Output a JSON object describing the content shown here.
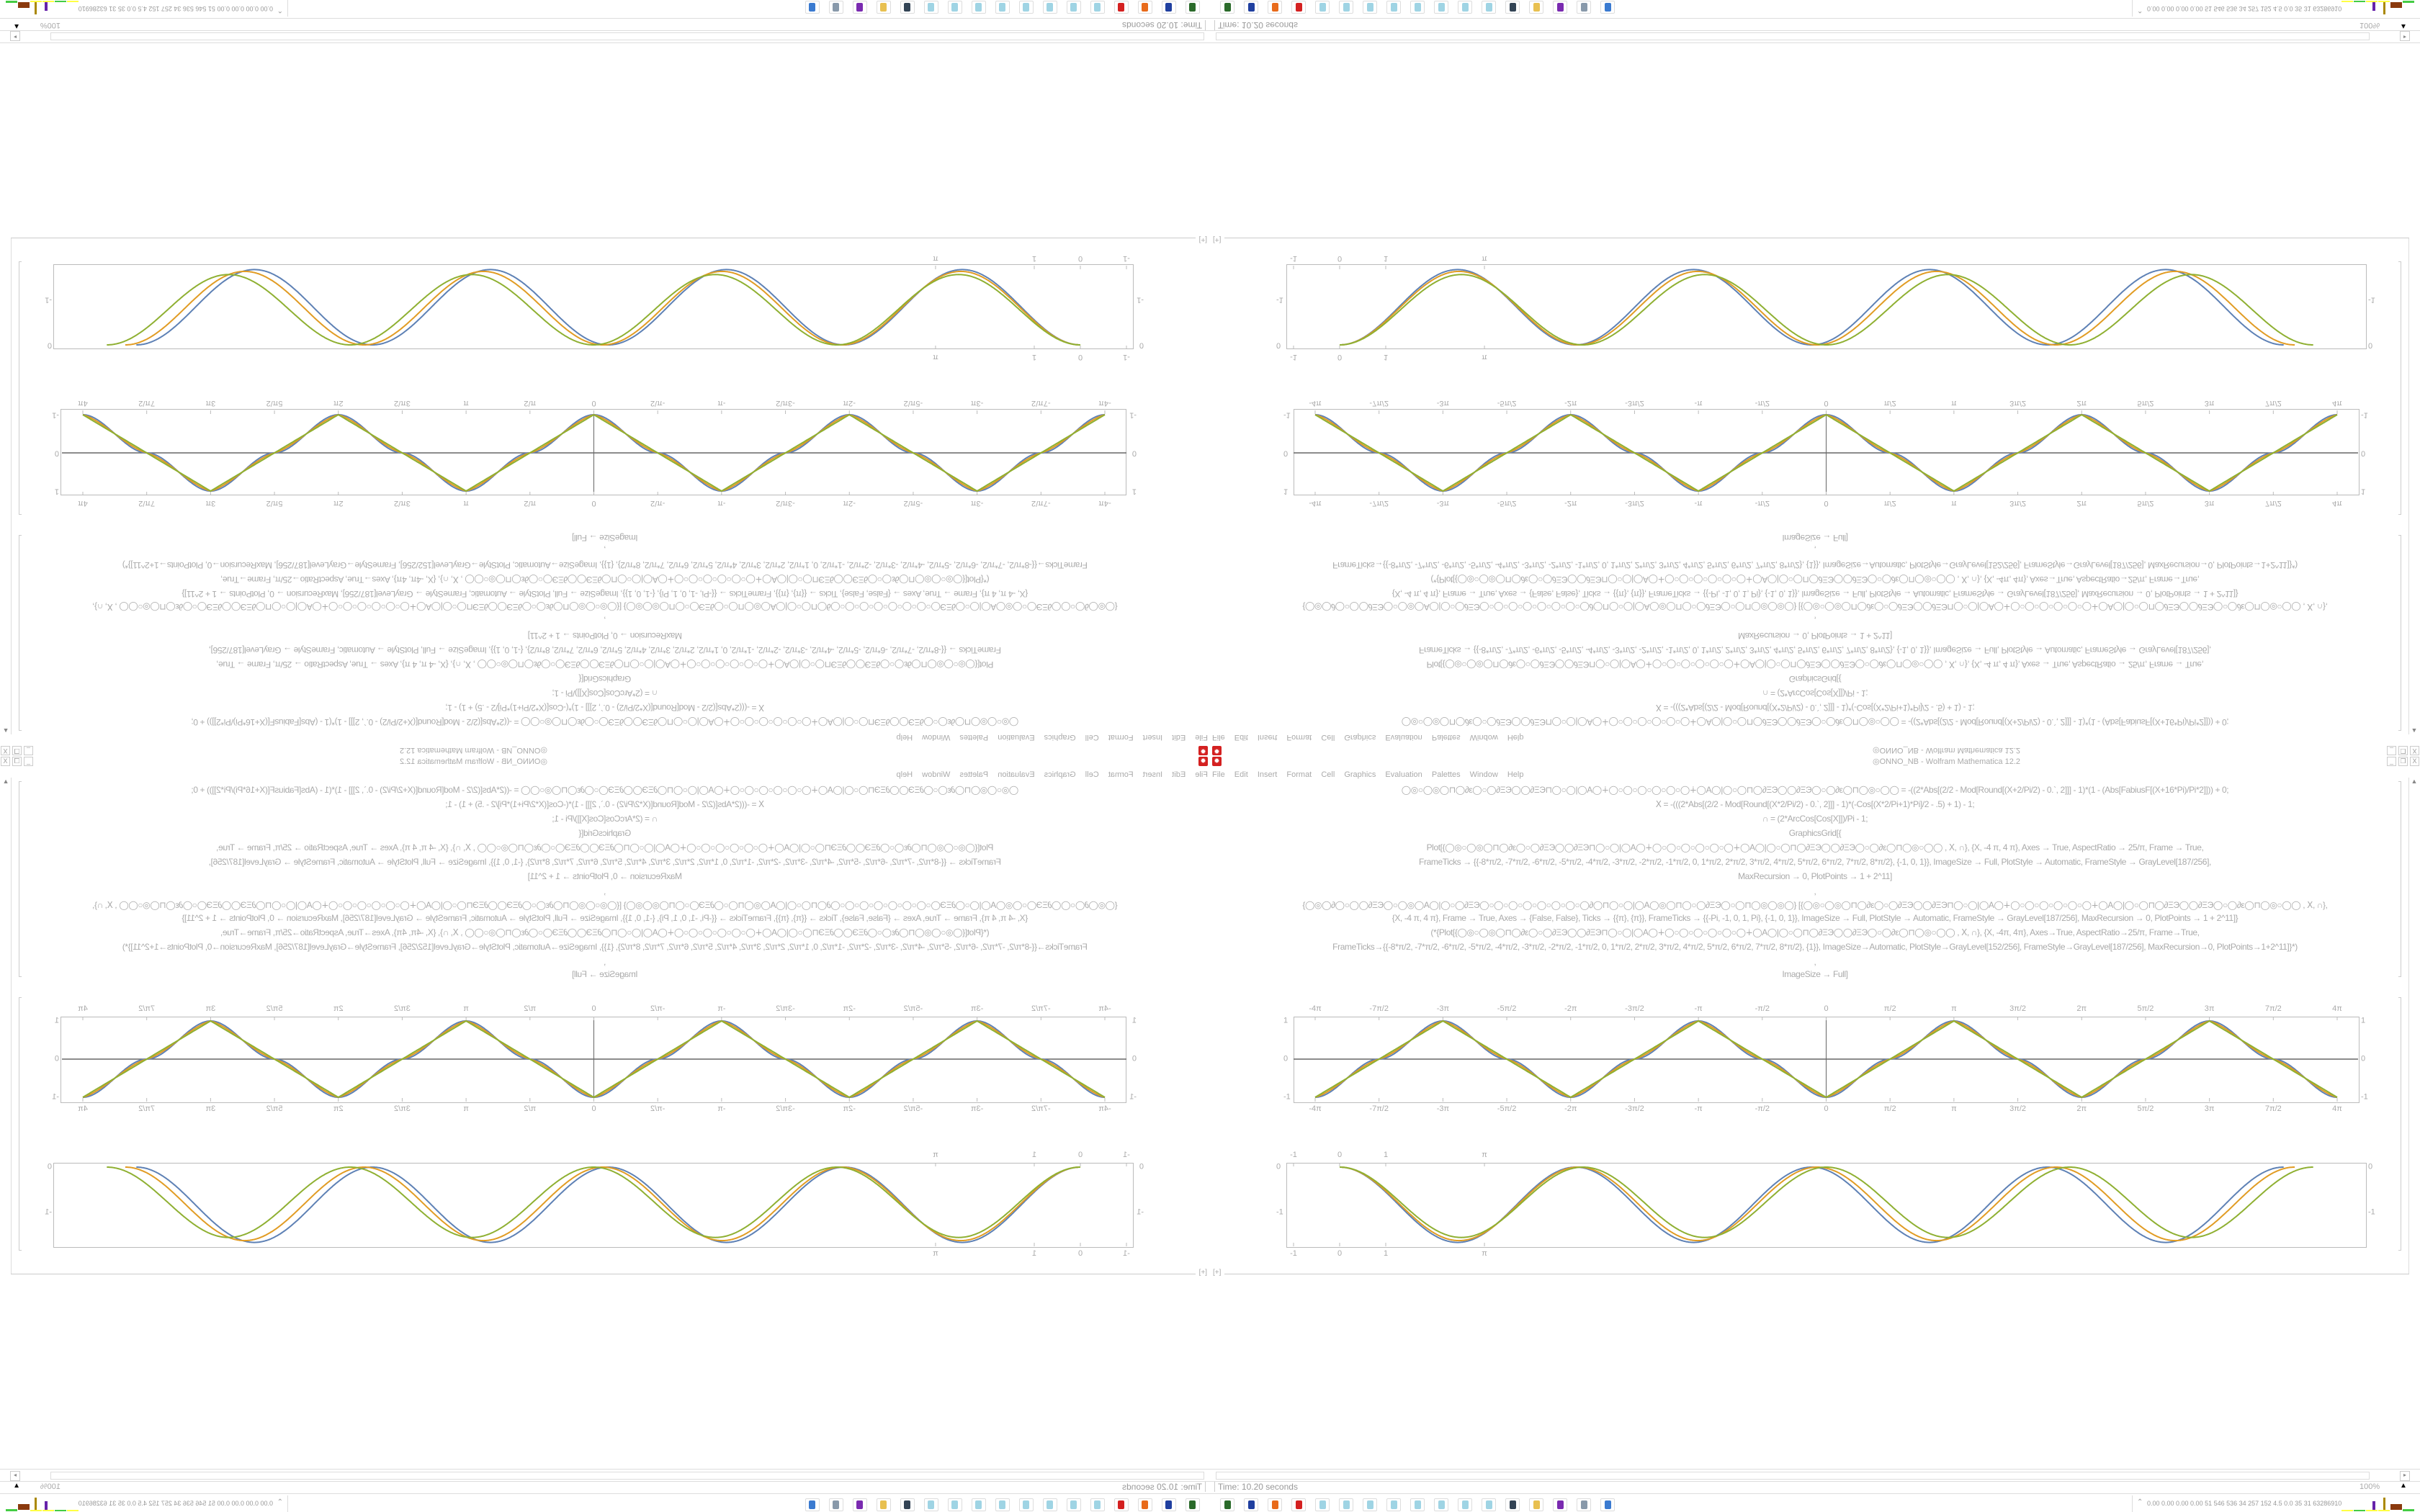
{
  "window": {
    "title": "◎ONNO_NB - Wolfram Mathematica 12.2",
    "app_icon": "mathematica-gear-icon",
    "controls": [
      "_",
      "❐",
      "X"
    ]
  },
  "menu": [
    "File",
    "Edit",
    "Insert",
    "Format",
    "Cell",
    "Graphics",
    "Evaluation",
    "Palettes",
    "Window",
    "Help"
  ],
  "code_lines": [
    "◯◎○◯◎◯⊓◯∂ε◯○◯∂ΞЭ◯◯∂ΞЭ⊓◯○◯|◯A◯∔◯○◯○◯○◯○◯○◯∔◯A◯|◯○◯⊓◯∂ΞЭ◯◯∂ΞЭ◯○◯∂ε◯⊓◯◎○◯◯   = -((2*Abs[(2/2 - Mod[Round[(X+2/Pi/2) - 0.`, 2]]] - 1)*(1 - (Abs[FabiusF[(X+16*Pi)/Pi*2]])) + 0;",
    "ꓫ = -(((2*Abs[(2/2 - Mod[Round[(X*2/Pi/2) - 0.`, 2]]] - 1)*(-Cos[(X*2/Pi+1)*Pi]/2 - .5) + 1) - 1;",
    "∩ = (2*ArcCos[Cos[X]])/Pi - 1;",
    "GraphicsGrid[{",
    "Plot[{◯◎○◯◎◯⊓◯∂ε◯○◯∂ΞЭ◯◯∂ΞЭ⊓◯○◯|◯A◯∔◯○◯○◯○◯○◯○◯∔◯A◯|◯○◯⊓◯∂ΞЭ◯◯∂ΞЭ◯○◯∂ε◯⊓◯◎○◯◯ , ꓫ, ∩}, {X, -4 π, 4 π}, Axes → True, AspectRatio → 25/π, Frame → True,",
    "FrameTicks → {{-8*π/2, -7*π/2, -6*π/2, -5*π/2, -4*π/2, -3*π/2, -2*π/2, -1*π/2, 0, 1*π/2, 2*π/2, 3*π/2, 4*π/2, 5*π/2, 6*π/2, 7*π/2, 8*π/2}, {-1, 0, 1}}, ImageSize → Full, PlotStyle → Automatic, FrameStyle → GrayLevel[187/256],",
    "MaxRecursion → 0, PlotPoints → 1 + 2^11]",
    ",",
    "{◯◎◯∂◯○◯◯∂ΞЭ◯○◯◎◯A◯|◯○◯∂ΞЭ◯○◯○◯○◯○◯○◯○◯○◯∂◯⊓◯○◯|◯A◯◎◯⊓◯○◯∂ΞЭ◯○◯⊓◯◎◯◎◯} [{◯◎○◯◎◯⊓◯∂ε◯○◯∂ΞЭ◯◯∂ΞЭ⊓◯○◯|◯A◯∔◯○◯○◯○◯○◯○◯∔◯A◯|◯○◯⊓◯∂ΞЭ◯◯∂ΞЭ◯○◯∂ε◯⊓◯◎○◯◯ , ꓫ, ∩},",
    "{X, -4 π, 4 π}, Frame → True, Axes → {False, False}, Ticks → {{π}, {π}}, FrameTicks → {{-Pi, -1, 0, 1, Pi}, {-1, 0, 1}}, ImageSize → Full, PlotStyle → Automatic, FrameStyle → GrayLevel[187/256], MaxRecursion → 0, PlotPoints → 1 + 2^11]}",
    "(*{Plot[{◯◎○◯◎◯⊓◯∂ε◯○◯∂ΞЭ◯◯∂ΞЭ⊓◯○◯|◯A◯∔◯○◯○◯○◯○◯○◯∔◯A◯|◯○◯⊓◯∂ΞЭ◯◯∂ΞЭ◯○◯∂ε◯⊓◯◎○◯◯ , ꓫ, ∩}, {X, -4π, 4π}, Axes→True, AspectRatio→25/π, Frame→True,",
    "FrameTicks→{{-8*π/2, -7*π/2, -6*π/2, -5*π/2, -4*π/2, -3*π/2, -2*π/2, -1*π/2, 0, 1*π/2, 2*π/2, 3*π/2, 4*π/2, 5*π/2, 6*π/2, 7*π/2, 8*π/2}, {1}}, ImageSize→Automatic, PlotStyle→GrayLevel[152/256], FrameStyle→GrayLevel[187/256], MaxRecursion→0, PlotPoints→1+2^11]}*)",
    ",",
    "ImageSize → Full]"
  ],
  "chart_data": [
    {
      "type": "line",
      "xlim": [
        -12.566,
        12.566
      ],
      "ylim": [
        -1,
        1
      ],
      "axes": true,
      "frame": true,
      "x_tick_labels": [
        "-4π",
        "-7π/2",
        "-3π",
        "-5π/2",
        "-2π",
        "-3π/2",
        "-π",
        "-π/2",
        "0",
        "π/2",
        "π",
        "3π/2",
        "2π",
        "5π/2",
        "3π",
        "7π/2",
        "4π"
      ],
      "y_tick_labels": [
        "-1",
        "0",
        "1"
      ],
      "series": [
        {
          "color": "#5E81B5",
          "x": [
            "-4π",
            "-7π/2",
            "-3π",
            "-5π/2",
            "-2π",
            "-3π/2",
            "-π",
            "-π/2",
            "0",
            "π/2",
            "π",
            "3π/2",
            "2π",
            "5π/2",
            "3π",
            "7π/2",
            "4π"
          ],
          "values": [
            -1,
            0,
            1,
            0,
            -1,
            0,
            1,
            0,
            -1,
            0,
            1,
            0,
            -1,
            0,
            1,
            0,
            -1
          ]
        },
        {
          "color": "#E19C24",
          "x": [
            "-4π",
            "-7π/2",
            "-3π",
            "-5π/2",
            "-2π",
            "-3π/2",
            "-π",
            "-π/2",
            "0",
            "π/2",
            "π",
            "3π/2",
            "2π",
            "5π/2",
            "3π",
            "7π/2",
            "4π"
          ],
          "values": [
            -1,
            0,
            1,
            0,
            -1,
            0,
            1,
            0,
            -1,
            0,
            1,
            0,
            -1,
            0,
            1,
            0,
            -1
          ]
        },
        {
          "color": "#8FB032",
          "x": [
            "-4π",
            "-7π/2",
            "-3π",
            "-5π/2",
            "-2π",
            "-3π/2",
            "-π",
            "-π/2",
            "0",
            "π/2",
            "π",
            "3π/2",
            "2π",
            "5π/2",
            "3π",
            "7π/2",
            "4π"
          ],
          "values": [
            -1,
            0,
            1,
            0,
            -1,
            0,
            1,
            0,
            -1,
            0,
            1,
            0,
            -1,
            0,
            1,
            0,
            -1
          ]
        }
      ]
    },
    {
      "type": "line",
      "xlim": [
        -1.2,
        22.2
      ],
      "ylim": [
        -1.75,
        0.1
      ],
      "axes": false,
      "frame": true,
      "x_tick_labels": [
        "-1",
        "0",
        "1",
        "π"
      ],
      "y_tick_labels": [
        "-1",
        "0"
      ],
      "series": [
        {
          "color": "#5E81B5",
          "x": [
            0,
            2.56,
            5.12,
            7.68,
            10.24,
            12.8,
            15.36,
            17.92,
            20.48
          ],
          "values": [
            0,
            -1.66,
            0,
            -1.66,
            0,
            -1.66,
            0,
            -1.66,
            0
          ]
        },
        {
          "color": "#E19C24",
          "x": [
            0,
            2.59,
            5.18,
            7.77,
            10.36,
            12.95,
            15.54,
            18.13,
            20.72
          ],
          "values": [
            0,
            -1.62,
            0,
            -1.62,
            0,
            -1.62,
            0,
            -1.62,
            0
          ]
        },
        {
          "color": "#8FB032",
          "x": [
            0,
            2.64,
            5.28,
            7.92,
            10.56,
            13.2,
            15.84,
            18.48,
            21.12
          ],
          "values": [
            0,
            -1.55,
            0,
            -1.55,
            0,
            -1.55,
            0,
            -1.55,
            0
          ]
        }
      ]
    }
  ],
  "cell_insert_label": "[+]",
  "status": {
    "timing": "Time: 10.20 seconds",
    "zoom": "100%"
  },
  "taskbar": {
    "icons": [
      "terminal-icon",
      "floppy-disk-icon",
      "firefox-icon",
      "gear-app-icon",
      "notepad-icon",
      "notepad-icon",
      "notepad-icon",
      "notepad-icon",
      "notepad-icon",
      "notepad-icon",
      "notepad-icon",
      "notepad-icon",
      "scanner-icon",
      "folder-icon",
      "purple-app-icon",
      "document-icon",
      "window-icon"
    ],
    "tray_text": "0.00 0.00 0.00 0.00  51  546  536  34  257  152  4.5  0.0  35  31  63286910"
  }
}
